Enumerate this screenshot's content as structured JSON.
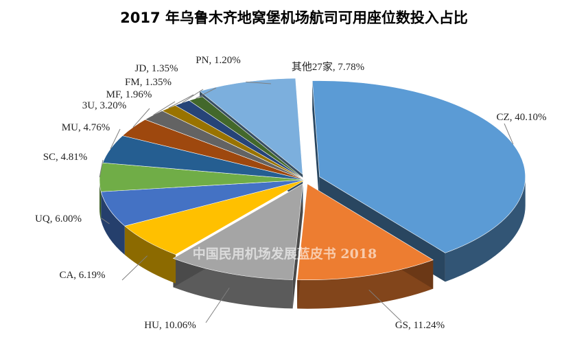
{
  "chart_data": {
    "type": "pie",
    "title": "2017 年乌鲁木齐地窝堡机场航司可用座位数投入占比",
    "watermark": "中国民用机场发展蓝皮书 2018",
    "slices": [
      {
        "label": "CZ",
        "value": 40.1,
        "text": "CZ, 40.10%",
        "color": "#5b9bd5"
      },
      {
        "label": "GS",
        "value": 11.24,
        "text": "GS, 11.24%",
        "color": "#ed7d31"
      },
      {
        "label": "HU",
        "value": 10.06,
        "text": "HU, 10.06%",
        "color": "#a5a5a5"
      },
      {
        "label": "CA",
        "value": 6.19,
        "text": "CA, 6.19%",
        "color": "#ffc000"
      },
      {
        "label": "UQ",
        "value": 6.0,
        "text": "UQ, 6.00%",
        "color": "#4472c4"
      },
      {
        "label": "SC",
        "value": 4.81,
        "text": "SC, 4.81%",
        "color": "#70ad47"
      },
      {
        "label": "MU",
        "value": 4.76,
        "text": "MU, 4.76%",
        "color": "#255e91"
      },
      {
        "label": "3U",
        "value": 3.2,
        "text": "3U, 3.20%",
        "color": "#9e480e"
      },
      {
        "label": "MF",
        "value": 1.96,
        "text": "MF, 1.96%",
        "color": "#636363"
      },
      {
        "label": "FM",
        "value": 1.35,
        "text": "FM, 1.35%",
        "color": "#997300"
      },
      {
        "label": "JD",
        "value": 1.35,
        "text": "JD, 1.35%",
        "color": "#264478"
      },
      {
        "label": "PN",
        "value": 1.2,
        "text": "PN, 1.20%",
        "color": "#43682b"
      },
      {
        "label": "其他27家",
        "value": 7.78,
        "text": "其他27家, 7.78%",
        "color": "#7cafdd"
      }
    ]
  }
}
